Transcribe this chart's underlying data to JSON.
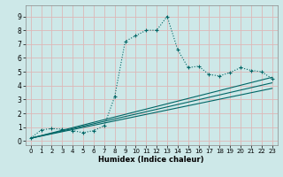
{
  "xlabel": "Humidex (Indice chaleur)",
  "xlim": [
    -0.5,
    23.5
  ],
  "ylim": [
    -0.3,
    9.8
  ],
  "xticks": [
    0,
    1,
    2,
    3,
    4,
    5,
    6,
    7,
    8,
    9,
    10,
    11,
    12,
    13,
    14,
    15,
    16,
    17,
    18,
    19,
    20,
    21,
    22,
    23
  ],
  "yticks": [
    0,
    1,
    2,
    3,
    4,
    5,
    6,
    7,
    8,
    9
  ],
  "bg_color": "#cde8e8",
  "grid_color": "#b0d4d4",
  "line_color": "#006666",
  "curve1_x": [
    0,
    1,
    2,
    3,
    4,
    5,
    6,
    7,
    8,
    9,
    10,
    11,
    12,
    13,
    14,
    15,
    16,
    17,
    18,
    19,
    20,
    21,
    22,
    23
  ],
  "curve1_y": [
    0.2,
    0.8,
    0.9,
    0.85,
    0.75,
    0.6,
    0.75,
    1.1,
    3.2,
    7.2,
    7.6,
    8.0,
    8.0,
    9.0,
    6.6,
    5.3,
    5.4,
    4.8,
    4.7,
    4.95,
    5.3,
    5.1,
    5.0,
    4.5
  ],
  "line2_x": [
    0,
    23
  ],
  "line2_y": [
    0.2,
    4.6
  ],
  "line3_x": [
    0,
    23
  ],
  "line3_y": [
    0.2,
    4.2
  ],
  "line4_x": [
    0,
    23
  ],
  "line4_y": [
    0.2,
    3.8
  ]
}
